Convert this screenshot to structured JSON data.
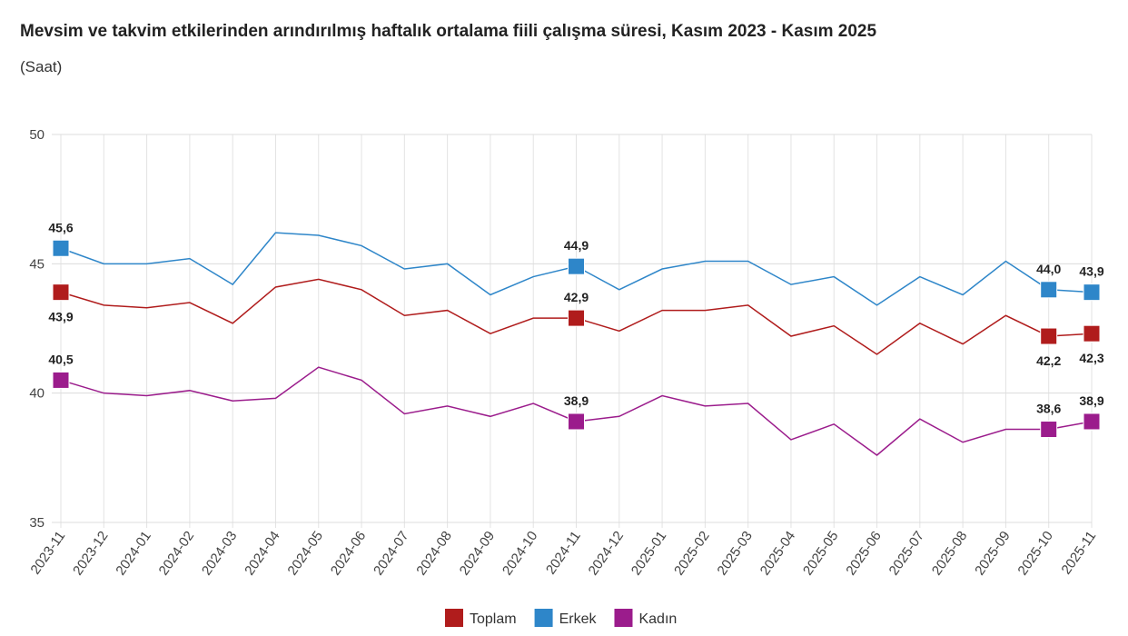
{
  "chart_data": {
    "type": "line",
    "title": "Mevsim ve takvim etkilerinden arındırılmış haftalık ortalama fiili çalışma süresi, Kasım 2023 - Kasım 2025",
    "subtitle": "(Saat)",
    "xlabel": "",
    "ylabel": "",
    "ylim": [
      35,
      50
    ],
    "yticks": [
      35,
      40,
      45,
      50
    ],
    "grid": true,
    "legend_position": "bottom",
    "categories": [
      "2023-11",
      "2023-12",
      "2024-01",
      "2024-02",
      "2024-03",
      "2024-04",
      "2024-05",
      "2024-06",
      "2024-07",
      "2024-08",
      "2024-09",
      "2024-10",
      "2024-11",
      "2024-12",
      "2025-01",
      "2025-02",
      "2025-03",
      "2025-04",
      "2025-05",
      "2025-06",
      "2025-07",
      "2025-08",
      "2025-09",
      "2025-10",
      "2025-11"
    ],
    "labeled_indices": [
      0,
      12,
      23,
      24
    ],
    "series": [
      {
        "name": "Toplam",
        "color": "#b01c1c",
        "labels_below": [
          0,
          23,
          24
        ],
        "values": [
          43.9,
          43.4,
          43.3,
          43.5,
          42.7,
          44.1,
          44.4,
          44.0,
          43.0,
          43.2,
          42.3,
          42.9,
          42.9,
          42.4,
          43.2,
          43.2,
          43.4,
          42.2,
          42.6,
          41.5,
          42.7,
          41.9,
          43.0,
          42.2,
          42.3
        ]
      },
      {
        "name": "Erkek",
        "color": "#2e86c9",
        "labels_below": [],
        "values": [
          45.6,
          45.0,
          45.0,
          45.2,
          44.2,
          46.2,
          46.1,
          45.7,
          44.8,
          45.0,
          43.8,
          44.5,
          44.9,
          44.0,
          44.8,
          45.1,
          45.1,
          44.2,
          44.5,
          43.4,
          44.5,
          43.8,
          45.1,
          44.0,
          43.9
        ]
      },
      {
        "name": "Kadın",
        "color": "#9b1c8c",
        "labels_below": [],
        "values": [
          40.5,
          40.0,
          39.9,
          40.1,
          39.7,
          39.8,
          41.0,
          40.5,
          39.2,
          39.5,
          39.1,
          39.6,
          38.9,
          39.1,
          39.9,
          39.5,
          39.6,
          38.2,
          38.8,
          37.6,
          39.0,
          38.1,
          38.6,
          38.6,
          38.9
        ]
      }
    ]
  }
}
